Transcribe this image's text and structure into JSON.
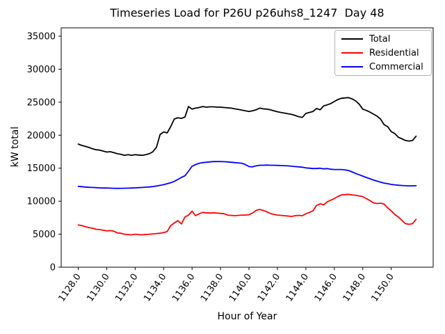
{
  "figure": {
    "title": "Timeseries Load for P26U p26uhs8_1247  Day 48",
    "xlabel": "Hour of Year",
    "ylabel": "kW total",
    "background_color": "#ffffff",
    "spine_color": "#000000"
  },
  "legend": {
    "position": "upper right",
    "border_color": "#b3b3b3",
    "entries": [
      {
        "label": "Total",
        "color": "#000000"
      },
      {
        "label": "Residential",
        "color": "#ff0000"
      },
      {
        "label": "Commercial",
        "color": "#0000ff"
      }
    ]
  },
  "chart_data": {
    "type": "line",
    "title": "Timeseries Load for P26U p26uhs8_1247  Day 48",
    "xlabel": "Hour of Year",
    "ylabel": "kW total",
    "grid": false,
    "legend_position": "upper right",
    "xlim": [
      1126.8,
      1152.95
    ],
    "ylim": [
      0,
      36270
    ],
    "x_tick_values": [
      1128,
      1130,
      1132,
      1134,
      1136,
      1138,
      1140,
      1142,
      1144,
      1146,
      1148,
      1150
    ],
    "x_tick_labels": [
      "1128.0",
      "1130.0",
      "1132.0",
      "1134.0",
      "1136.0",
      "1138.0",
      "1140.0",
      "1142.0",
      "1144.0",
      "1146.0",
      "1148.0",
      "1150.0"
    ],
    "y_tick_values": [
      0,
      5000,
      10000,
      15000,
      20000,
      25000,
      30000,
      35000
    ],
    "y_tick_labels": [
      "0",
      "5000",
      "10000",
      "15000",
      "20000",
      "25000",
      "30000",
      "35000"
    ],
    "x_start": 1128.0,
    "x_step": 0.25,
    "series": [
      {
        "name": "Total",
        "color": "#000000",
        "values": [
          18650,
          18450,
          18300,
          18150,
          17950,
          17800,
          17750,
          17600,
          17450,
          17500,
          17350,
          17200,
          17100,
          16950,
          17050,
          16950,
          17050,
          17000,
          16950,
          17050,
          17200,
          17500,
          18200,
          20100,
          20500,
          20350,
          21300,
          22450,
          22650,
          22550,
          22750,
          24350,
          23950,
          24100,
          24200,
          24350,
          24250,
          24300,
          24300,
          24250,
          24250,
          24200,
          24150,
          24100,
          24000,
          23900,
          23800,
          23700,
          23600,
          23700,
          23850,
          24100,
          24000,
          23950,
          23850,
          23700,
          23550,
          23450,
          23350,
          23250,
          23150,
          23000,
          22800,
          22700,
          23300,
          23450,
          23600,
          24050,
          23850,
          24450,
          24600,
          24800,
          25100,
          25400,
          25600,
          25650,
          25700,
          25500,
          25200,
          24700,
          23950,
          23750,
          23500,
          23200,
          22900,
          22450,
          21600,
          21300,
          20550,
          20250,
          19700,
          19450,
          19200,
          19100,
          19200,
          19850
        ]
      },
      {
        "name": "Residential",
        "color": "#ff0000",
        "values": [
          6400,
          6300,
          6150,
          6000,
          5900,
          5750,
          5700,
          5600,
          5500,
          5550,
          5450,
          5200,
          5150,
          5000,
          4950,
          4900,
          5000,
          4950,
          4900,
          4950,
          5000,
          5050,
          5100,
          5150,
          5250,
          5400,
          6300,
          6700,
          7050,
          6550,
          7600,
          7900,
          8500,
          7800,
          8100,
          8300,
          8250,
          8200,
          8250,
          8200,
          8150,
          8100,
          7900,
          7850,
          7800,
          7850,
          7900,
          7900,
          7950,
          8200,
          8600,
          8750,
          8600,
          8400,
          8150,
          8000,
          7900,
          7850,
          7800,
          7750,
          7700,
          7800,
          7850,
          7800,
          8100,
          8300,
          8550,
          9350,
          9600,
          9450,
          9900,
          10150,
          10400,
          10700,
          10950,
          11000,
          11050,
          10950,
          10900,
          10800,
          10700,
          10400,
          10100,
          9750,
          9650,
          9700,
          9550,
          9000,
          8550,
          8000,
          7600,
          7100,
          6600,
          6500,
          6600,
          7250
        ]
      },
      {
        "name": "Commercial",
        "color": "#0000ff",
        "values": [
          12250,
          12200,
          12150,
          12100,
          12080,
          12050,
          12020,
          12000,
          12000,
          11980,
          11960,
          11950,
          11960,
          11970,
          11980,
          12000,
          12020,
          12050,
          12080,
          12120,
          12160,
          12220,
          12300,
          12400,
          12500,
          12650,
          12800,
          13000,
          13300,
          13600,
          13850,
          14550,
          15300,
          15550,
          15750,
          15850,
          15900,
          15950,
          16000,
          16000,
          16000,
          15980,
          15950,
          15900,
          15850,
          15800,
          15750,
          15550,
          15250,
          15200,
          15350,
          15450,
          15450,
          15480,
          15450,
          15450,
          15430,
          15400,
          15380,
          15350,
          15300,
          15250,
          15200,
          15150,
          15050,
          15000,
          14950,
          14950,
          15000,
          14900,
          14950,
          14850,
          14800,
          14800,
          14800,
          14750,
          14650,
          14450,
          14200,
          14000,
          13800,
          13600,
          13400,
          13200,
          13050,
          12900,
          12750,
          12650,
          12550,
          12480,
          12420,
          12380,
          12350,
          12330,
          12330,
          12350
        ]
      }
    ]
  }
}
